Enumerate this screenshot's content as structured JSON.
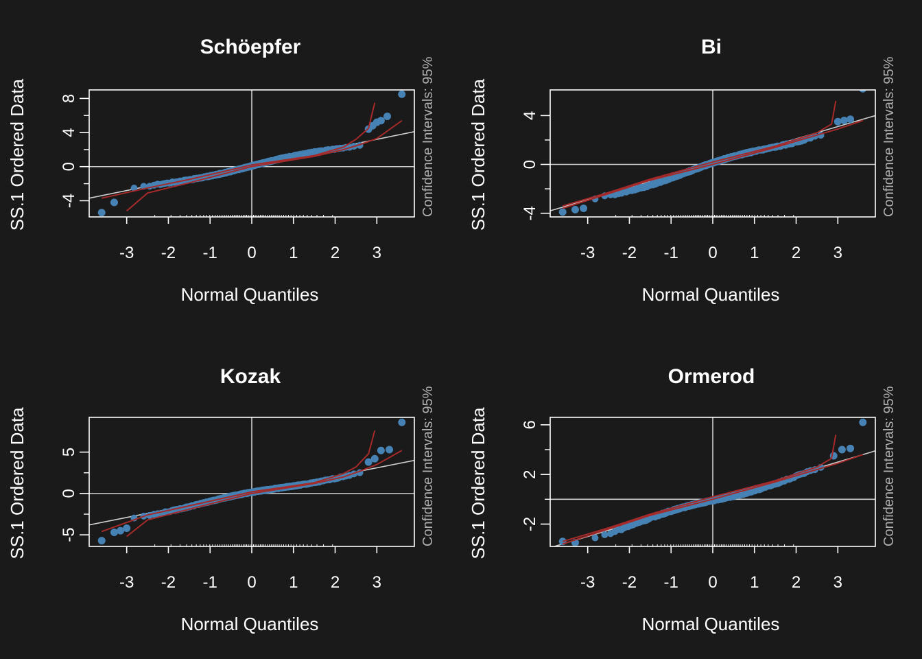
{
  "colors": {
    "background": "#1a1a1a",
    "axis": "#ffffff",
    "points": "#4682b4",
    "ci": "#a52a2a",
    "refline": "#cfcfcf",
    "conf_text": "#b0b0b0"
  },
  "chart_data": [
    {
      "type": "scatter",
      "title": "Schöepfer",
      "xlabel": "Normal Quantiles",
      "ylabel": "SS.1 Ordered Data",
      "side_label": "Confidence Intervals: 95%",
      "xlim": [
        -3.9,
        3.9
      ],
      "ylim": [
        -5.9,
        9.0
      ],
      "xticks": [
        -3,
        -2,
        -1,
        0,
        1,
        2,
        3
      ],
      "yticks": [
        -4,
        0,
        4,
        8
      ],
      "yminor": [
        -2,
        2,
        6
      ],
      "ref_slope": 1.0,
      "ref_intercept": 0.2,
      "outliers": [
        [
          -3.6,
          -5.4
        ],
        [
          -3.3,
          -4.2
        ],
        [
          2.8,
          4.4
        ],
        [
          2.9,
          4.8
        ],
        [
          3.0,
          5.2
        ],
        [
          3.1,
          5.4
        ],
        [
          3.25,
          5.9
        ],
        [
          3.6,
          8.5
        ]
      ],
      "ci_lower": [
        [
          -3.0,
          -5.2
        ],
        [
          -2.5,
          -3.1
        ],
        [
          -1.5,
          -1.9
        ],
        [
          0,
          0.0
        ],
        [
          1.5,
          1.2
        ],
        [
          2.2,
          2.0
        ],
        [
          2.6,
          2.6
        ],
        [
          3.0,
          3.3
        ],
        [
          3.6,
          5.4
        ]
      ],
      "ci_upper": [
        [
          -3.6,
          -3.7
        ],
        [
          -2.5,
          -2.5
        ],
        [
          -1.5,
          -1.5
        ],
        [
          0,
          0.2
        ],
        [
          1.5,
          1.3
        ],
        [
          2.2,
          2.3
        ],
        [
          2.5,
          3.2
        ],
        [
          2.8,
          4.5
        ],
        [
          2.95,
          7.5
        ]
      ]
    },
    {
      "type": "scatter",
      "title": "Bi",
      "xlabel": "Normal Quantiles",
      "ylabel": "SS.1 Ordered Data",
      "side_label": "Confidence Intervals: 95%",
      "xlim": [
        -3.9,
        3.9
      ],
      "ylim": [
        -4.3,
        6.1
      ],
      "xticks": [
        -3,
        -2,
        -1,
        0,
        1,
        2,
        3
      ],
      "yticks": [
        -4,
        0,
        4
      ],
      "yminor": [
        -2,
        2
      ],
      "ref_slope": 1.0,
      "ref_intercept": 0.1,
      "outliers": [
        [
          -3.6,
          -3.9
        ],
        [
          -3.3,
          -3.7
        ],
        [
          -3.1,
          -3.6
        ],
        [
          3.0,
          3.5
        ],
        [
          3.15,
          3.6
        ],
        [
          3.3,
          3.7
        ],
        [
          3.6,
          6.2
        ]
      ],
      "ci_lower": [
        [
          -3.6,
          -3.6
        ],
        [
          -2.5,
          -2.4
        ],
        [
          -1.5,
          -1.3
        ],
        [
          0,
          0.0
        ],
        [
          1.5,
          1.4
        ],
        [
          2.5,
          2.4
        ],
        [
          3.0,
          2.9
        ],
        [
          3.6,
          3.6
        ]
      ],
      "ci_upper": [
        [
          -3.6,
          -3.4
        ],
        [
          -2.5,
          -2.3
        ],
        [
          -1.5,
          -1.2
        ],
        [
          0,
          0.2
        ],
        [
          1.5,
          1.5
        ],
        [
          2.5,
          2.6
        ],
        [
          2.85,
          3.3
        ],
        [
          2.95,
          5.2
        ]
      ]
    },
    {
      "type": "scatter",
      "title": "Kozak",
      "xlabel": "Normal Quantiles",
      "ylabel": "SS.1 Ordered Data",
      "side_label": "Confidence Intervals: 95%",
      "xlim": [
        -3.9,
        3.9
      ],
      "ylim": [
        -6.4,
        9.2
      ],
      "xticks": [
        -3,
        -2,
        -1,
        0,
        1,
        2,
        3
      ],
      "yticks": [
        -5,
        0,
        5
      ],
      "yminor": [
        -2.5,
        2.5
      ],
      "ref_slope": 1.0,
      "ref_intercept": 0.1,
      "outliers": [
        [
          -3.6,
          -5.7
        ],
        [
          -3.3,
          -4.7
        ],
        [
          -3.15,
          -4.5
        ],
        [
          -3.0,
          -4.2
        ],
        [
          2.8,
          3.8
        ],
        [
          2.95,
          4.2
        ],
        [
          3.1,
          5.2
        ],
        [
          3.3,
          5.3
        ],
        [
          3.6,
          8.6
        ]
      ],
      "ci_lower": [
        [
          -3.0,
          -5.2
        ],
        [
          -2.5,
          -3.2
        ],
        [
          -1.5,
          -1.9
        ],
        [
          0,
          0.0
        ],
        [
          1.5,
          1.2
        ],
        [
          2.2,
          2.0
        ],
        [
          2.6,
          2.7
        ],
        [
          3.0,
          3.5
        ],
        [
          3.6,
          5.2
        ]
      ],
      "ci_upper": [
        [
          -3.6,
          -4.6
        ],
        [
          -2.5,
          -2.6
        ],
        [
          -1.5,
          -1.5
        ],
        [
          0,
          0.2
        ],
        [
          1.5,
          1.3
        ],
        [
          2.2,
          2.4
        ],
        [
          2.5,
          3.2
        ],
        [
          2.8,
          4.8
        ],
        [
          2.95,
          7.6
        ]
      ]
    },
    {
      "type": "scatter",
      "title": "Ormerod",
      "xlabel": "Normal Quantiles",
      "ylabel": "SS.1 Ordered Data",
      "side_label": "Confidence Intervals: 95%",
      "xlim": [
        -3.9,
        3.9
      ],
      "ylim": [
        -3.8,
        6.6
      ],
      "xticks": [
        -3,
        -2,
        -1,
        0,
        1,
        2,
        3
      ],
      "yticks": [
        -2,
        2,
        6
      ],
      "yminor": [
        0,
        4
      ],
      "ref_slope": 1.0,
      "ref_intercept": 0.0,
      "outliers": [
        [
          -3.6,
          -3.4
        ],
        [
          -3.3,
          -3.5
        ],
        [
          2.9,
          3.5
        ],
        [
          3.1,
          4.0
        ],
        [
          3.3,
          4.1
        ],
        [
          3.6,
          6.2
        ]
      ],
      "ci_lower": [
        [
          -3.6,
          -3.6
        ],
        [
          -2.5,
          -2.4
        ],
        [
          -1.5,
          -1.3
        ],
        [
          0,
          0.0
        ],
        [
          1.5,
          1.4
        ],
        [
          2.5,
          2.4
        ],
        [
          3.0,
          2.9
        ],
        [
          3.6,
          3.6
        ]
      ],
      "ci_upper": [
        [
          -3.6,
          -3.4
        ],
        [
          -2.5,
          -2.3
        ],
        [
          -1.5,
          -1.2
        ],
        [
          0,
          0.2
        ],
        [
          1.5,
          1.5
        ],
        [
          2.5,
          2.6
        ],
        [
          2.85,
          3.3
        ],
        [
          2.95,
          5.2
        ]
      ]
    }
  ]
}
